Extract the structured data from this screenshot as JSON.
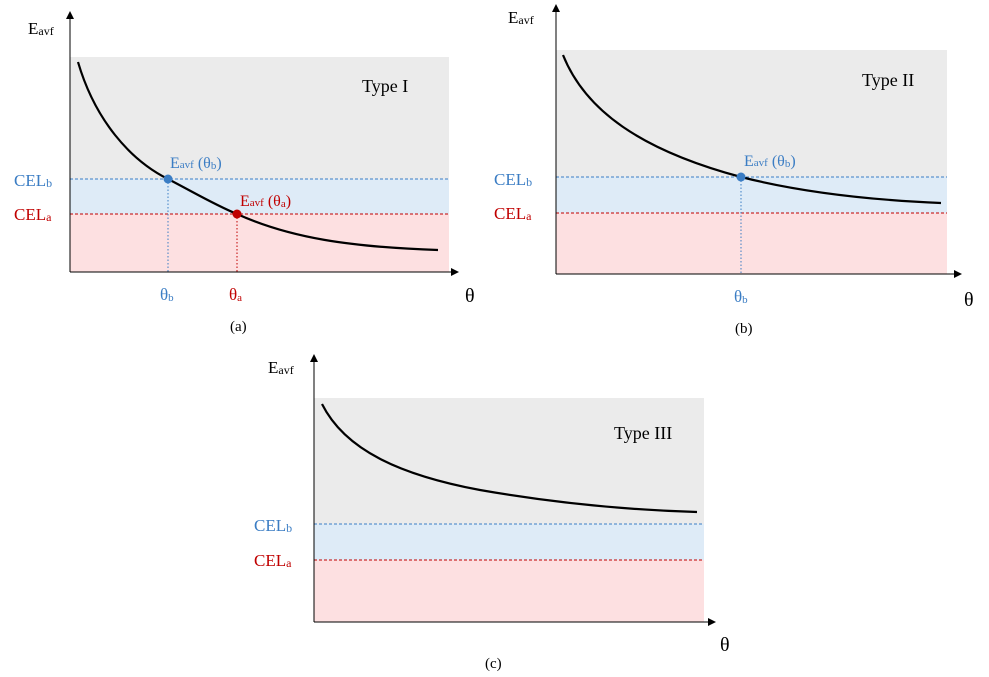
{
  "colors": {
    "gray_region": "#ebebeb",
    "blue_region": "#deebf7",
    "red_region": "#fde0e1",
    "blue": "#3b7dc4",
    "red": "#c00000",
    "curve": "#000000"
  },
  "panels": [
    {
      "id": "a",
      "caption": "(a)",
      "type_label": "Type I",
      "y_axis": {
        "main": "E",
        "sub": "avf"
      },
      "x_axis": "θ",
      "cel_b": {
        "main": "CEL",
        "sub": "b"
      },
      "cel_a": {
        "main": "CEL",
        "sub": "a"
      },
      "intersections": [
        {
          "key": "b",
          "label_main": "E",
          "label_sub": "avf",
          "label_paren_open": " (θ",
          "label_paren_sub": "b",
          "label_paren_close": ")",
          "theta_main": "θ",
          "theta_sub": "b"
        },
        {
          "key": "a",
          "label_main": "E",
          "label_sub": "avf",
          "label_paren_open": " (θ",
          "label_paren_sub": "a",
          "label_paren_close": ")",
          "theta_main": "θ",
          "theta_sub": "a"
        }
      ]
    },
    {
      "id": "b",
      "caption": "(b)",
      "type_label": "Type II",
      "y_axis": {
        "main": "E",
        "sub": "avf"
      },
      "x_axis": "θ",
      "cel_b": {
        "main": "CEL",
        "sub": "b"
      },
      "cel_a": {
        "main": "CEL",
        "sub": "a"
      },
      "intersections": [
        {
          "key": "b",
          "label_main": "E",
          "label_sub": "avf",
          "label_paren_open": " (θ",
          "label_paren_sub": "b",
          "label_paren_close": ")",
          "theta_main": "θ",
          "theta_sub": "b"
        }
      ]
    },
    {
      "id": "c",
      "caption": "(c)",
      "type_label": "Type III",
      "y_axis": {
        "main": "E",
        "sub": "avf"
      },
      "x_axis": "θ",
      "cel_b": {
        "main": "CEL",
        "sub": "b"
      },
      "cel_a": {
        "main": "CEL",
        "sub": "a"
      },
      "intersections": []
    }
  ]
}
